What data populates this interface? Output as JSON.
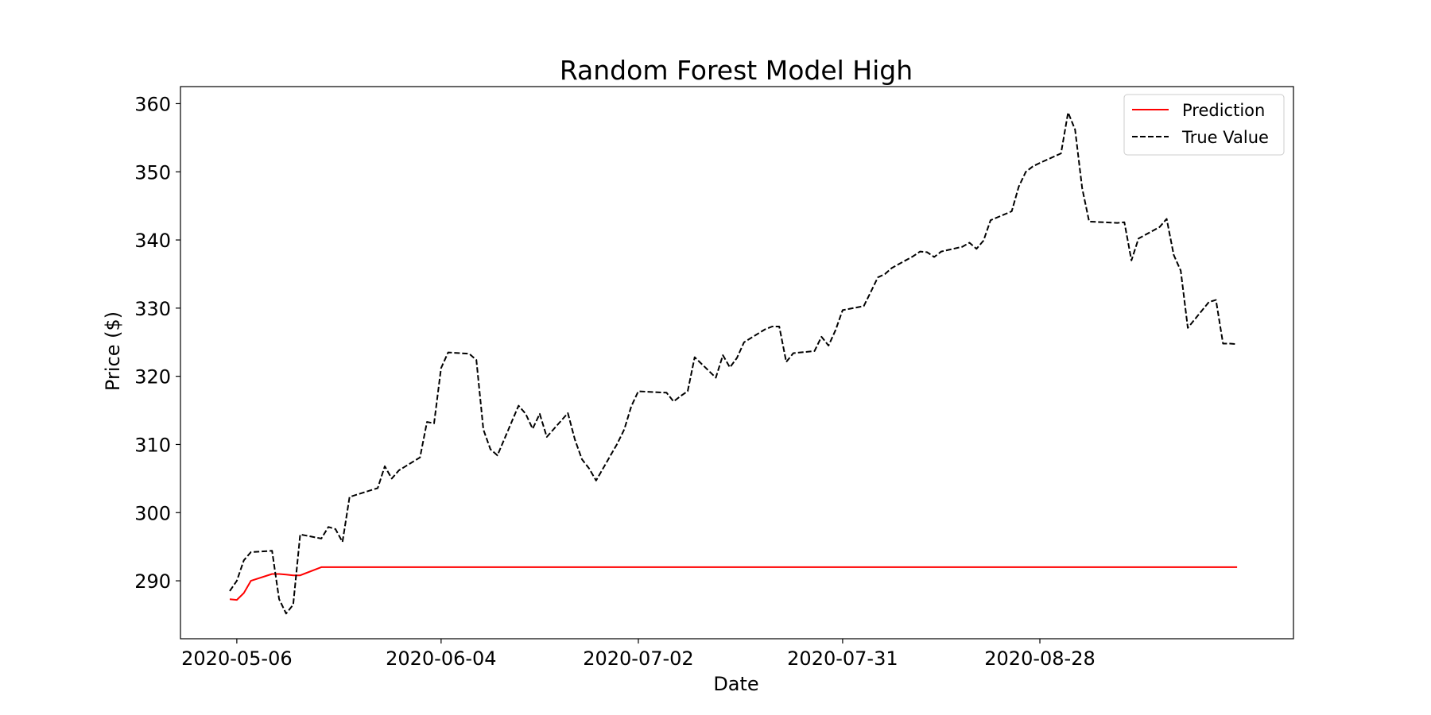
{
  "chart_data": {
    "type": "line",
    "title": "Random Forest Model High",
    "xlabel": "Date",
    "ylabel": "Price ($)",
    "ylim": [
      281.5,
      362.5
    ],
    "yticks": [
      290,
      300,
      310,
      320,
      330,
      340,
      350,
      360
    ],
    "xticks": [
      "2020-05-06",
      "2020-06-04",
      "2020-07-02",
      "2020-07-31",
      "2020-08-28"
    ],
    "xlim": [
      "2020-04-28",
      "2020-10-03"
    ],
    "grid": false,
    "legend_position": "top-right",
    "x": [
      "2020-05-05",
      "2020-05-06",
      "2020-05-07",
      "2020-05-08",
      "2020-05-11",
      "2020-05-12",
      "2020-05-13",
      "2020-05-14",
      "2020-05-15",
      "2020-05-18",
      "2020-05-19",
      "2020-05-20",
      "2020-05-21",
      "2020-05-22",
      "2020-05-26",
      "2020-05-27",
      "2020-05-28",
      "2020-05-29",
      "2020-06-01",
      "2020-06-02",
      "2020-06-03",
      "2020-06-04",
      "2020-06-05",
      "2020-06-08",
      "2020-06-09",
      "2020-06-10",
      "2020-06-11",
      "2020-06-12",
      "2020-06-15",
      "2020-06-16",
      "2020-06-17",
      "2020-06-18",
      "2020-06-19",
      "2020-06-22",
      "2020-06-23",
      "2020-06-24",
      "2020-06-25",
      "2020-06-26",
      "2020-06-29",
      "2020-06-30",
      "2020-07-01",
      "2020-07-02",
      "2020-07-06",
      "2020-07-07",
      "2020-07-08",
      "2020-07-09",
      "2020-07-10",
      "2020-07-13",
      "2020-07-14",
      "2020-07-15",
      "2020-07-16",
      "2020-07-17",
      "2020-07-20",
      "2020-07-21",
      "2020-07-22",
      "2020-07-23",
      "2020-07-24",
      "2020-07-27",
      "2020-07-28",
      "2020-07-29",
      "2020-07-30",
      "2020-07-31",
      "2020-08-03",
      "2020-08-04",
      "2020-08-05",
      "2020-08-06",
      "2020-08-07",
      "2020-08-10",
      "2020-08-11",
      "2020-08-12",
      "2020-08-13",
      "2020-08-14",
      "2020-08-17",
      "2020-08-18",
      "2020-08-19",
      "2020-08-20",
      "2020-08-21",
      "2020-08-24",
      "2020-08-25",
      "2020-08-26",
      "2020-08-27",
      "2020-08-28",
      "2020-08-31",
      "2020-09-01",
      "2020-09-02",
      "2020-09-03",
      "2020-09-04",
      "2020-09-08",
      "2020-09-09",
      "2020-09-10",
      "2020-09-11",
      "2020-09-14",
      "2020-09-15",
      "2020-09-16",
      "2020-09-17",
      "2020-09-18",
      "2020-09-21",
      "2020-09-22",
      "2020-09-23",
      "2020-09-24",
      "2020-09-25"
    ],
    "series": [
      {
        "name": "Prediction",
        "color": "#ff0000",
        "style": "solid",
        "values": [
          287.3,
          287.2,
          288.2,
          290.0,
          291.0,
          291.0,
          290.9,
          290.8,
          290.8,
          292.0,
          292.0,
          292.0,
          292.0,
          292.0,
          292.0,
          292.0,
          292.0,
          292.0,
          292.0,
          292.0,
          292.0,
          292.0,
          292.0,
          292.0,
          292.0,
          292.0,
          292.0,
          292.0,
          292.0,
          292.0,
          292.0,
          292.0,
          292.0,
          292.0,
          292.0,
          292.0,
          292.0,
          292.0,
          292.0,
          292.0,
          292.0,
          292.0,
          292.0,
          292.0,
          292.0,
          292.0,
          292.0,
          292.0,
          292.0,
          292.0,
          292.0,
          292.0,
          292.0,
          292.0,
          292.0,
          292.0,
          292.0,
          292.0,
          292.0,
          292.0,
          292.0,
          292.0,
          292.0,
          292.0,
          292.0,
          292.0,
          292.0,
          292.0,
          292.0,
          292.0,
          292.0,
          292.0,
          292.0,
          292.0,
          292.0,
          292.0,
          292.0,
          292.0,
          292.0,
          292.0,
          292.0,
          292.0,
          292.0,
          292.0,
          292.0,
          292.0,
          292.0,
          292.0,
          292.0,
          292.0,
          292.0,
          292.0,
          292.0,
          292.0,
          292.0,
          292.0,
          292.0,
          292.0,
          292.0,
          292.0,
          292.0
        ]
      },
      {
        "name": "True Value",
        "color": "#000000",
        "style": "dashed",
        "values": [
          288.5,
          290.0,
          293.0,
          294.2,
          294.4,
          287.3,
          285.2,
          286.5,
          296.8,
          296.2,
          297.9,
          297.6,
          295.7,
          302.3,
          303.6,
          306.8,
          305.0,
          306.2,
          308.1,
          313.3,
          313.1,
          321.2,
          323.5,
          323.3,
          322.4,
          312.2,
          309.3,
          308.4,
          315.7,
          314.5,
          312.3,
          314.5,
          311.1,
          314.6,
          310.7,
          307.8,
          306.5,
          304.7,
          310.1,
          312.2,
          315.6,
          317.8,
          317.6,
          316.3,
          317.1,
          317.8,
          322.8,
          319.8,
          323.1,
          321.3,
          322.7,
          325.0,
          326.9,
          327.3,
          327.3,
          322.1,
          323.4,
          323.7,
          325.8,
          324.5,
          326.8,
          329.7,
          330.3,
          332.4,
          334.5,
          335.0,
          335.9,
          337.6,
          338.3,
          338.2,
          337.5,
          338.3,
          339.0,
          339.6,
          338.7,
          339.9,
          342.9,
          344.2,
          347.8,
          350.0,
          350.8,
          351.3,
          352.7,
          358.7,
          356.2,
          347.6,
          342.7,
          342.5,
          342.6,
          337.0,
          340.2,
          341.9,
          343.1,
          337.8,
          335.5,
          327.1,
          330.9,
          331.2,
          324.8,
          324.8,
          324.7
        ]
      }
    ]
  }
}
